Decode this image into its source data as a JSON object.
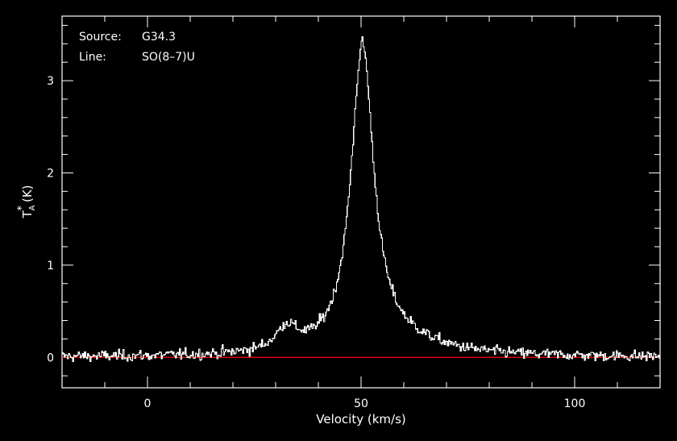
{
  "chart_data": {
    "type": "line",
    "title": "",
    "annotations": [
      {
        "label": "Source:",
        "value": "G34.3"
      },
      {
        "label": "Line:",
        "value": "SO(8–7)U"
      }
    ],
    "xlabel": "Velocity (km/s)",
    "ylabel_main": "T",
    "ylabel_sub": "A",
    "ylabel_sup": "*",
    "ylabel_unit": "(K)",
    "xlim": [
      -20,
      120
    ],
    "ylim": [
      -0.33,
      3.7
    ],
    "xticks": [
      0,
      50,
      100
    ],
    "xtick_labels": [
      "0",
      "50",
      "100"
    ],
    "yticks": [
      0,
      1,
      2,
      3
    ],
    "ytick_labels": [
      "0",
      "1",
      "2",
      "3"
    ],
    "baseline": 0,
    "colors": {
      "background": "#000000",
      "axes": "#ffffff",
      "spectrum": "#ffffff",
      "baseline": "#ff0000"
    },
    "spectrum_model": {
      "components": [
        {
          "center": 50.2,
          "peak": 3.3,
          "width": 3.2
        },
        {
          "center": 32.5,
          "peak": 0.25,
          "width": 3.0
        },
        {
          "center": 58.0,
          "peak": 0.15,
          "width": 12.0
        }
      ],
      "noise_rms": 0.03,
      "channel_width": 0.25
    }
  }
}
